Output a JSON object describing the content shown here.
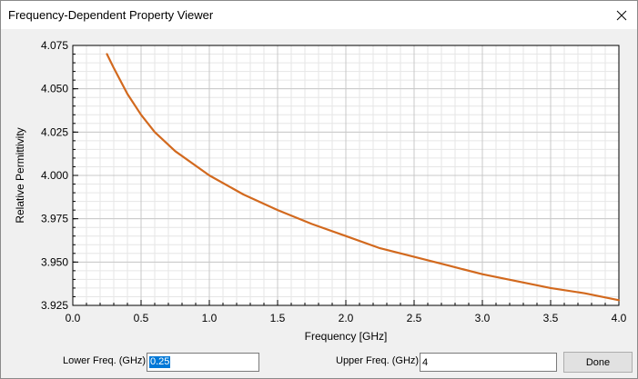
{
  "window": {
    "title": "Frequency-Dependent Property Viewer",
    "close_icon": "close-icon"
  },
  "colors": {
    "curve": "#d2691e",
    "plot_background": "#ffffff",
    "grid_major": "#c8c8c8",
    "grid_minor": "#e6e6e6",
    "panel_background": "#f0f0f0"
  },
  "controls": {
    "lower_label": "Lower Freq. (GHz):",
    "lower_value": "0.25",
    "upper_label": "Upper Freq. (GHz):",
    "upper_value": "4",
    "done_label": "Done"
  },
  "chart_data": {
    "type": "line",
    "title": "",
    "xlabel": "Frequency [GHz]",
    "ylabel": "Relative Permittivity",
    "xlim": [
      0,
      4
    ],
    "ylim": [
      3.925,
      4.075
    ],
    "grid": true,
    "minor_grid": true,
    "legend": "none",
    "x_ticks": [
      "0.0",
      "0.5",
      "1.0",
      "1.5",
      "2.0",
      "2.5",
      "3.0",
      "3.5",
      "4.0"
    ],
    "y_ticks": [
      "3.925",
      "3.950",
      "3.975",
      "4.000",
      "4.025",
      "4.050",
      "4.075"
    ],
    "series": [
      {
        "x": [
          0.25,
          0.3,
          0.4,
          0.5,
          0.6,
          0.75,
          1.0,
          1.25,
          1.5,
          1.75,
          2.0,
          2.25,
          2.5,
          2.75,
          3.0,
          3.25,
          3.5,
          3.75,
          4.0
        ],
        "y": [
          4.07,
          4.062,
          4.047,
          4.035,
          4.025,
          4.014,
          4.0,
          3.989,
          3.98,
          3.972,
          3.965,
          3.958,
          3.953,
          3.948,
          3.943,
          3.939,
          3.935,
          3.932,
          3.928
        ]
      }
    ]
  }
}
